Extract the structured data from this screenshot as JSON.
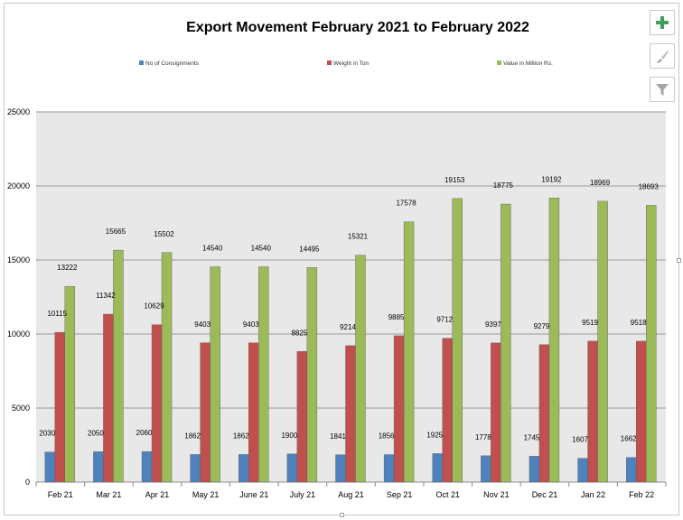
{
  "chart_data": {
    "type": "bar",
    "title": "Export Movement February 2021 to February 2022",
    "categories": [
      "Feb 21",
      "Mar 21",
      "Apr 21",
      "May 21",
      "June 21",
      "July 21",
      "Aug 21",
      "Sep 21",
      "Oct 21",
      "Nov 21",
      "Dec 21",
      "Jan 22",
      "Feb 22"
    ],
    "series": [
      {
        "name": "No of Consignments",
        "color": "#4f81bd",
        "values": [
          2030,
          2050,
          2060,
          1862,
          1862,
          1900,
          1841,
          1856,
          1925,
          1778,
          1745,
          1607,
          1662
        ]
      },
      {
        "name": "Weight in Ton",
        "color": "#c0504d",
        "values": [
          10115,
          11342,
          10629,
          9403,
          9403,
          8825,
          9214,
          9885,
          9712,
          9397,
          9279,
          9519,
          9518
        ]
      },
      {
        "name": "Value in Million Rs.",
        "color": "#9bbb59",
        "values": [
          13222,
          15665,
          15502,
          14540,
          14540,
          14495,
          15321,
          17578,
          19153,
          18775,
          19192,
          18969,
          18693
        ]
      }
    ],
    "ylim": [
      0,
      25000
    ],
    "yticks": [
      0,
      5000,
      10000,
      15000,
      20000,
      25000
    ],
    "grid": true,
    "legend_position": "top",
    "plot_background": "#e8e8e8"
  },
  "toolbar": {
    "buttons": [
      {
        "name": "chart-elements-button",
        "icon": "plus-icon"
      },
      {
        "name": "chart-styles-button",
        "icon": "paintbrush-icon"
      },
      {
        "name": "chart-filters-button",
        "icon": "filter-icon"
      }
    ]
  }
}
